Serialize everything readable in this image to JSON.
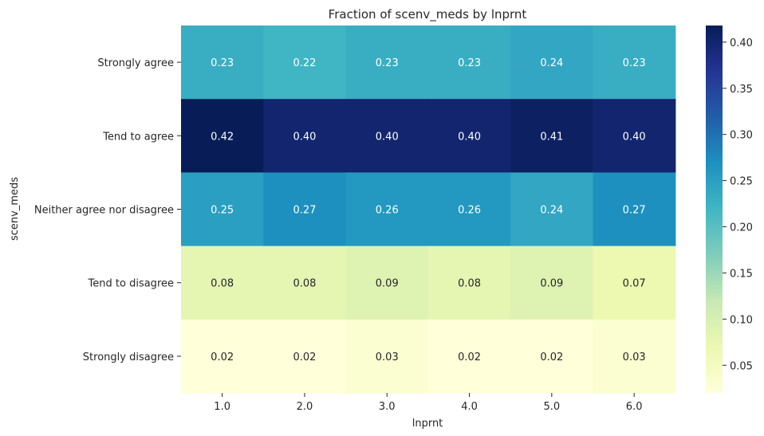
{
  "chart_data": {
    "type": "heatmap",
    "title": "Fraction of scenv_meds by lnprnt",
    "xlabel": "lnprnt",
    "ylabel": "scenv_meds",
    "x_categories": [
      "1.0",
      "2.0",
      "3.0",
      "4.0",
      "5.0",
      "6.0"
    ],
    "y_categories": [
      "Strongly agree",
      "Tend to agree",
      "Neither agree nor disagree",
      "Tend to disagree",
      "Strongly disagree"
    ],
    "values": [
      [
        0.23,
        0.22,
        0.23,
        0.23,
        0.24,
        0.23
      ],
      [
        0.42,
        0.4,
        0.4,
        0.4,
        0.41,
        0.4
      ],
      [
        0.25,
        0.27,
        0.26,
        0.26,
        0.24,
        0.27
      ],
      [
        0.08,
        0.08,
        0.09,
        0.08,
        0.09,
        0.07
      ],
      [
        0.02,
        0.02,
        0.03,
        0.02,
        0.02,
        0.03
      ]
    ],
    "value_labels": [
      [
        "0.23",
        "0.22",
        "0.23",
        "0.23",
        "0.24",
        "0.23"
      ],
      [
        "0.42",
        "0.40",
        "0.40",
        "0.40",
        "0.41",
        "0.40"
      ],
      [
        "0.25",
        "0.27",
        "0.26",
        "0.26",
        "0.24",
        "0.27"
      ],
      [
        "0.08",
        "0.08",
        "0.09",
        "0.08",
        "0.09",
        "0.07"
      ],
      [
        "0.02",
        "0.02",
        "0.03",
        "0.02",
        "0.02",
        "0.03"
      ]
    ],
    "colorbar": {
      "colormap": "YlGnBu",
      "range": [
        0.02,
        0.418
      ],
      "ticks": [
        0.05,
        0.1,
        0.15,
        0.2,
        0.25,
        0.3,
        0.35,
        0.4
      ],
      "tick_labels": [
        "0.05",
        "0.10",
        "0.15",
        "0.20",
        "0.25",
        "0.30",
        "0.35",
        "0.40"
      ]
    },
    "grid": false
  }
}
